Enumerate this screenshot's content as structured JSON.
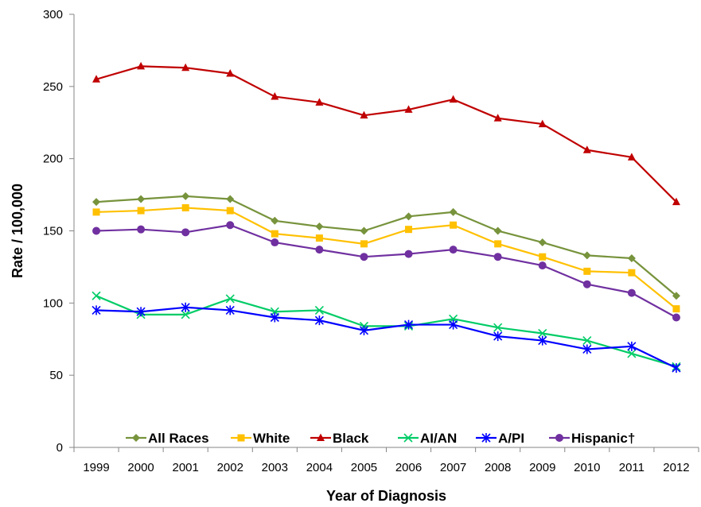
{
  "chart_data": {
    "type": "line",
    "title": "",
    "xlabel": "Year of Diagnosis",
    "ylabel": "Rate / 100,000",
    "ylim": [
      0,
      300
    ],
    "yticks": [
      0,
      50,
      100,
      150,
      200,
      250,
      300
    ],
    "x": [
      "1999",
      "2000",
      "2001",
      "2002",
      "2003",
      "2004",
      "2005",
      "2006",
      "2007",
      "2008",
      "2009",
      "2010",
      "2011",
      "2012"
    ],
    "grid": false,
    "legend": "bottom-inside",
    "series": [
      {
        "name": "All Races",
        "color": "#77933c",
        "marker": "diamond",
        "values": [
          170,
          172,
          174,
          172,
          157,
          153,
          150,
          160,
          163,
          150,
          142,
          133,
          131,
          105
        ]
      },
      {
        "name": "White",
        "color": "#ffc000",
        "marker": "square",
        "values": [
          163,
          164,
          166,
          164,
          148,
          145,
          141,
          151,
          154,
          141,
          132,
          122,
          121,
          96
        ]
      },
      {
        "name": "Black",
        "color": "#c00000",
        "marker": "triangle",
        "values": [
          255,
          264,
          263,
          259,
          243,
          239,
          230,
          234,
          241,
          228,
          224,
          206,
          201,
          170
        ]
      },
      {
        "name": "AI/AN",
        "color": "#00cc66",
        "marker": "x",
        "values": [
          105,
          92,
          92,
          103,
          94,
          95,
          84,
          84,
          89,
          83,
          79,
          74,
          65,
          56
        ]
      },
      {
        "name": "A/PI",
        "color": "#0000ff",
        "marker": "star",
        "values": [
          95,
          94,
          97,
          95,
          90,
          88,
          81,
          85,
          85,
          77,
          74,
          68,
          70,
          55
        ]
      },
      {
        "name": "Hispanic†",
        "color": "#7030a0",
        "marker": "circle",
        "values": [
          150,
          151,
          149,
          154,
          142,
          137,
          132,
          134,
          137,
          132,
          126,
          113,
          107,
          90
        ]
      }
    ]
  }
}
